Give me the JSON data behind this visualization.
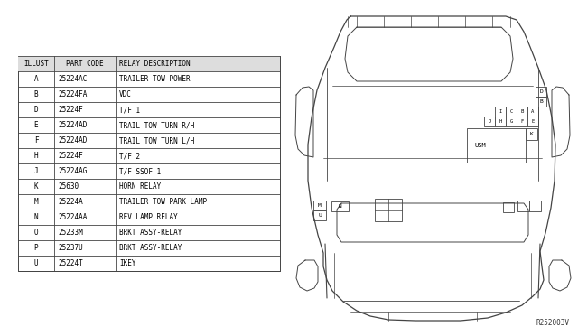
{
  "ref_code": "R252003V",
  "bg_color": "#ffffff",
  "table_rows": [
    [
      "A",
      "25224AC",
      "TRAILER TOW POWER"
    ],
    [
      "B",
      "25224FA",
      "VDC"
    ],
    [
      "D",
      "25224F",
      "T/F 1"
    ],
    [
      "E",
      "25224AD",
      "TRAIL TOW TURN R/H"
    ],
    [
      "F",
      "25224AD",
      "TRAIL TOW TURN L/H"
    ],
    [
      "H",
      "25224F",
      "T/F 2"
    ],
    [
      "J",
      "25224AG",
      "T/F SSOF 1"
    ],
    [
      "K",
      "25630",
      "HORN RELAY"
    ],
    [
      "M",
      "25224A",
      "TRAILER TOW PARK LAMP"
    ],
    [
      "N",
      "25224AA",
      "REV LAMP RELAY"
    ],
    [
      "O",
      "25233M",
      "BRKT ASSY-RELAY"
    ],
    [
      "P",
      "25237U",
      "BRKT ASSY-RELAY"
    ],
    [
      "U",
      "25224T",
      "IKEY"
    ]
  ],
  "line_color": "#444444",
  "text_color": "#000000"
}
